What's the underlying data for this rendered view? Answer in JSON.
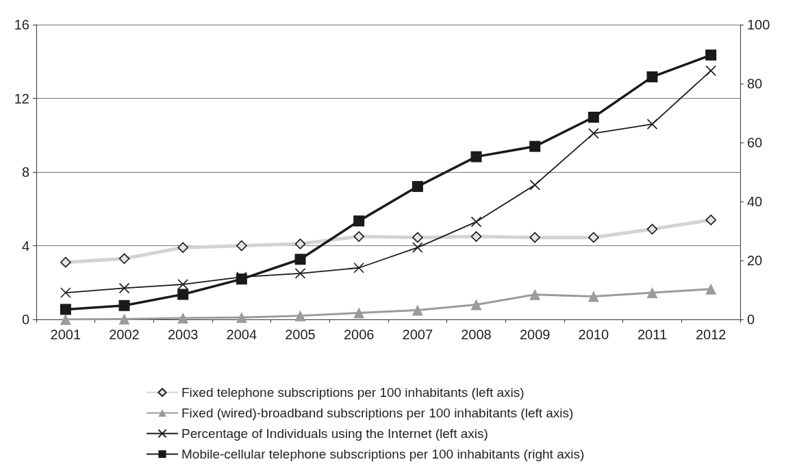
{
  "chart_data": {
    "type": "line",
    "categories": [
      "2001",
      "2002",
      "2003",
      "2004",
      "2005",
      "2006",
      "2007",
      "2008",
      "2009",
      "2010",
      "2011",
      "2012"
    ],
    "series": [
      {
        "name": "Fixed telephone subscriptions per 100 inhabitants (left axis)",
        "color": "#d3d3d3",
        "marker": "diamond",
        "values": [
          3.1,
          3.3,
          3.9,
          4.0,
          4.1,
          4.5,
          4.45,
          4.5,
          4.45,
          4.45,
          4.9,
          5.4
        ]
      },
      {
        "name": "Fixed (wired)-broadband subscriptions per 100 inhabitants (left axis)",
        "color": "#9b9b9b",
        "marker": "triangle",
        "values": [
          0.0,
          0.02,
          0.07,
          0.1,
          0.2,
          0.35,
          0.5,
          0.8,
          1.35,
          1.25,
          1.45,
          1.65
        ]
      },
      {
        "name": "Percentage of Individuals using the Internet (left axis)",
        "color": "#1a1a1a",
        "marker": "cross",
        "values": [
          1.45,
          1.7,
          1.9,
          2.3,
          2.5,
          2.8,
          3.9,
          5.3,
          7.3,
          10.1,
          10.6,
          13.5
        ]
      },
      {
        "name": "Mobile-cellular telephone subscriptions per 100 inhabitants (right axis)",
        "color": "#1a1a1a",
        "marker": "square",
        "axis": "y2",
        "values": [
          3.4,
          4.7,
          8.5,
          13.7,
          20.4,
          33.4,
          45.1,
          55.2,
          58.7,
          68.6,
          82.3,
          89.7
        ]
      }
    ],
    "ylim": [
      0,
      16
    ],
    "yticks": [
      0,
      4,
      8,
      12,
      16
    ],
    "y2lim": [
      0,
      100
    ],
    "y2ticks": [
      0,
      20,
      40,
      60,
      80,
      100
    ],
    "grid": "y",
    "legend": "bottom"
  }
}
